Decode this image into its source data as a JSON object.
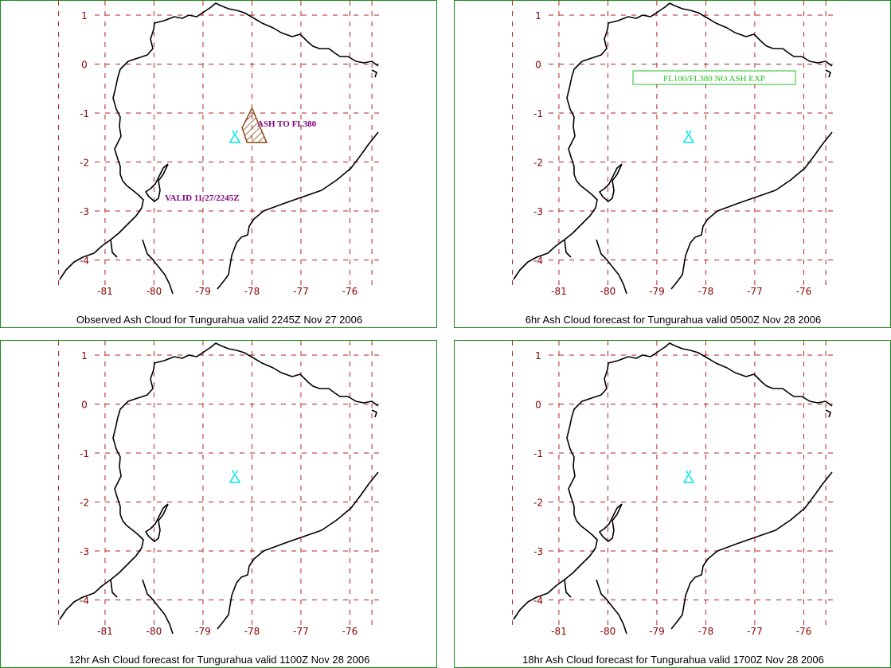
{
  "map": {
    "y_ticks": [
      "1",
      "0",
      "-1",
      "-2",
      "-3",
      "-4"
    ],
    "x_ticks": [
      "-81",
      "-80",
      "-79",
      "-78",
      "-77",
      "-76"
    ],
    "grid_color": "#b22222",
    "tick_color": "#8b0000",
    "coast_color": "#000000",
    "volcano_color": "#00e5ee",
    "volcano_icon": "volcano-triangle-icon",
    "volcano_lon": -78.35,
    "volcano_lat": -1.5
  },
  "panels": [
    {
      "caption": "Observed Ash Cloud for Tungurahua valid 2245Z Nov 27 2006",
      "annotations": {
        "ash_label": "ASH TO FL380",
        "valid_label": "VALID 11/27/2245Z"
      },
      "ash_polygon": [
        [
          -78.2,
          -1.3
        ],
        [
          -78.0,
          -0.9
        ],
        [
          -77.7,
          -1.6
        ],
        [
          -78.1,
          -1.6
        ]
      ],
      "ash_color": "#8b4513"
    },
    {
      "caption": "6hr Ash Cloud forecast for Tungurahua valid 0500Z Nov 28 2006",
      "annotations": {
        "box_label": "FL100/FL380 NO ASH EXP"
      }
    },
    {
      "caption": "12hr Ash Cloud forecast for Tungurahua valid 1100Z Nov 28 2006"
    },
    {
      "caption": "18hr Ash Cloud forecast for Tungurahua valid 1700Z Nov 28 2006"
    }
  ]
}
